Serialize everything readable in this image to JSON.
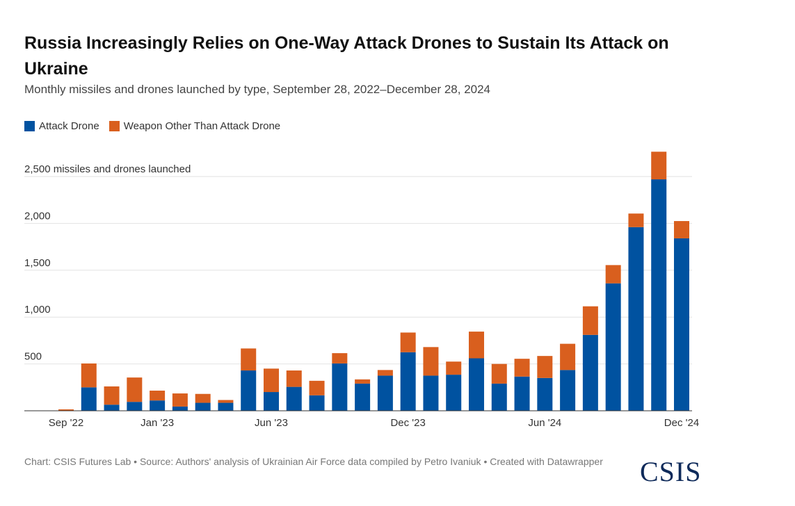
{
  "header": {
    "title": "Russia Increasingly Relies on One-Way Attack Drones to Sustain Its Attack on Ukraine",
    "subtitle": "Monthly missiles and drones launched by type, September 28, 2022–December 28, 2024"
  },
  "legend": {
    "items": [
      {
        "label": "Attack Drone",
        "color": "#0052a0"
      },
      {
        "label": "Weapon Other Than Attack Drone",
        "color": "#d95f1e"
      }
    ]
  },
  "footer": {
    "note": "Chart: CSIS Futures Lab • Source: Authors' analysis of Ukrainian Air Force data compiled by Petro Ivaniuk • Created with Datawrapper",
    "logo": "CSIS"
  },
  "chart_data": {
    "type": "bar",
    "stacked": true,
    "categories": [
      "Sep 2022",
      "Oct 2022",
      "Nov 2022",
      "Dec 2022",
      "Jan 2023",
      "Feb 2023",
      "Mar 2023",
      "Apr 2023",
      "May 2023",
      "Jun 2023",
      "Jul 2023",
      "Aug 2023",
      "Sep 2023",
      "Oct 2023",
      "Nov 2023",
      "Dec 2023",
      "Jan 2024",
      "Feb 2024",
      "Mar 2024",
      "Apr 2024",
      "May 2024",
      "Jun 2024",
      "Jul 2024",
      "Aug 2024",
      "Sep 2024",
      "Oct 2024",
      "Nov 2024",
      "Dec 2024"
    ],
    "series": [
      {
        "name": "Attack Drone",
        "color": "#0052a0",
        "values": [
          0,
          250,
          65,
          95,
          110,
          45,
          85,
          85,
          430,
          200,
          255,
          165,
          505,
          290,
          375,
          625,
          375,
          385,
          560,
          290,
          365,
          350,
          435,
          810,
          1360,
          1960,
          2470,
          1840
        ]
      },
      {
        "name": "Weapon Other Than Attack Drone",
        "color": "#d95f1e",
        "values": [
          15,
          255,
          195,
          260,
          105,
          140,
          95,
          30,
          235,
          250,
          175,
          155,
          110,
          45,
          60,
          210,
          305,
          140,
          285,
          210,
          190,
          235,
          280,
          305,
          195,
          145,
          295,
          185
        ]
      }
    ],
    "x_tick_labels": [
      "Sep '22",
      "Jan '23",
      "Jun '23",
      "Dec '23",
      "Jun '24",
      "Dec '24"
    ],
    "x_tick_indices": [
      0,
      4,
      9,
      15,
      21,
      27
    ],
    "y_ticks": [
      500,
      1000,
      1500,
      2000,
      2500
    ],
    "y_tick_labels": [
      "500",
      "1,000",
      "1,500",
      "2,000",
      "2,500 missiles and drones launched"
    ],
    "ylim": [
      0,
      2800
    ],
    "grid": true,
    "legend_position": "top-left"
  }
}
